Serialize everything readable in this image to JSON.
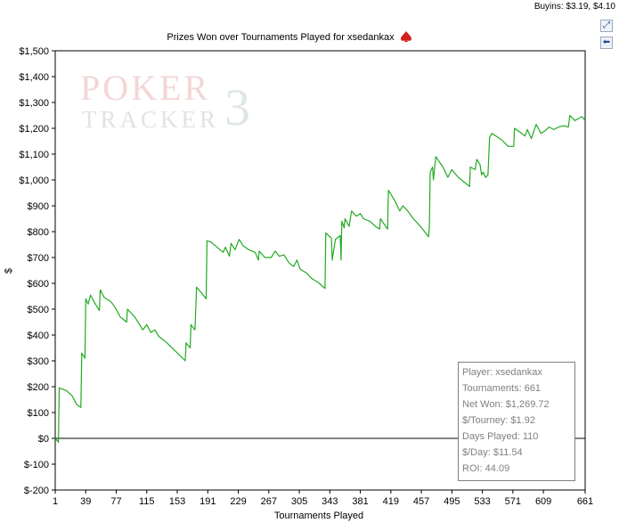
{
  "header": {
    "buyins": "Buyins: $3.19, $4.10"
  },
  "toolbar": {
    "expand_icon": "expand-icon",
    "back_icon": "back-arrow-icon"
  },
  "stats": {
    "player": "Player: xsedankax",
    "tournaments": "Tournaments: 661",
    "net_won": "Net Won: $1,269.72",
    "per_tourney": "$/Tourney: $1.92",
    "days_played": "Days Played: 110",
    "per_day": "$/Day: $11.54",
    "roi": "ROI: 44.09"
  },
  "watermark": {
    "line1": "POKER",
    "line2": "TRACKER",
    "mark": "3"
  },
  "chart_data": {
    "type": "line",
    "title": "Prizes Won over Tournaments Played for xsedankax",
    "xlabel": "Tournaments Played",
    "ylabel": "$",
    "xlim": [
      1,
      661
    ],
    "ylim": [
      -200,
      1500
    ],
    "x_ticks": [
      1,
      39,
      77,
      115,
      153,
      191,
      229,
      267,
      305,
      343,
      381,
      419,
      457,
      495,
      533,
      571,
      609,
      661
    ],
    "y_ticks": [
      -200,
      -100,
      0,
      100,
      200,
      300,
      400,
      500,
      600,
      700,
      800,
      900,
      1000,
      1100,
      1200,
      1300,
      1400,
      1500
    ],
    "y_tick_labels": [
      "$-200",
      "$-100",
      "$0",
      "$100",
      "$200",
      "$300",
      "$400",
      "$500",
      "$600",
      "$700",
      "$800",
      "$900",
      "$1,000",
      "$1,100",
      "$1,200",
      "$1,300",
      "$1,400",
      "$1,500"
    ],
    "series": [
      {
        "color": "#22aa22",
        "points": [
          [
            1,
            0
          ],
          [
            5,
            -15
          ],
          [
            6,
            195
          ],
          [
            15,
            185
          ],
          [
            22,
            165
          ],
          [
            28,
            130
          ],
          [
            33,
            120
          ],
          [
            34,
            330
          ],
          [
            38,
            310
          ],
          [
            39,
            540
          ],
          [
            42,
            520
          ],
          [
            45,
            555
          ],
          [
            50,
            525
          ],
          [
            56,
            495
          ],
          [
            57,
            575
          ],
          [
            62,
            545
          ],
          [
            70,
            530
          ],
          [
            75,
            510
          ],
          [
            82,
            470
          ],
          [
            90,
            450
          ],
          [
            91,
            500
          ],
          [
            100,
            470
          ],
          [
            110,
            420
          ],
          [
            115,
            440
          ],
          [
            120,
            410
          ],
          [
            125,
            420
          ],
          [
            130,
            395
          ],
          [
            140,
            370
          ],
          [
            150,
            340
          ],
          [
            163,
            300
          ],
          [
            164,
            370
          ],
          [
            169,
            350
          ],
          [
            170,
            440
          ],
          [
            175,
            420
          ],
          [
            177,
            585
          ],
          [
            184,
            560
          ],
          [
            189,
            540
          ],
          [
            190,
            765
          ],
          [
            195,
            760
          ],
          [
            210,
            720
          ],
          [
            213,
            740
          ],
          [
            218,
            705
          ],
          [
            220,
            755
          ],
          [
            225,
            730
          ],
          [
            230,
            770
          ],
          [
            235,
            745
          ],
          [
            242,
            730
          ],
          [
            250,
            720
          ],
          [
            254,
            690
          ],
          [
            255,
            725
          ],
          [
            262,
            700
          ],
          [
            270,
            700
          ],
          [
            275,
            725
          ],
          [
            280,
            705
          ],
          [
            286,
            710
          ],
          [
            292,
            680
          ],
          [
            298,
            665
          ],
          [
            302,
            690
          ],
          [
            306,
            655
          ],
          [
            314,
            640
          ],
          [
            320,
            620
          ],
          [
            330,
            600
          ],
          [
            337,
            580
          ],
          [
            338,
            795
          ],
          [
            345,
            775
          ],
          [
            346,
            690
          ],
          [
            350,
            770
          ],
          [
            356,
            785
          ],
          [
            357,
            690
          ],
          [
            358,
            840
          ],
          [
            361,
            815
          ],
          [
            362,
            850
          ],
          [
            367,
            820
          ],
          [
            370,
            880
          ],
          [
            376,
            860
          ],
          [
            381,
            870
          ],
          [
            385,
            850
          ],
          [
            393,
            840
          ],
          [
            400,
            820
          ],
          [
            405,
            810
          ],
          [
            406,
            850
          ],
          [
            415,
            810
          ],
          [
            416,
            960
          ],
          [
            424,
            920
          ],
          [
            430,
            880
          ],
          [
            434,
            900
          ],
          [
            440,
            880
          ],
          [
            447,
            850
          ],
          [
            456,
            820
          ],
          [
            466,
            780
          ],
          [
            467,
            820
          ],
          [
            468,
            1030
          ],
          [
            471,
            1050
          ],
          [
            472,
            1000
          ],
          [
            475,
            1090
          ],
          [
            484,
            1050
          ],
          [
            490,
            1010
          ],
          [
            495,
            1040
          ],
          [
            503,
            1010
          ],
          [
            511,
            990
          ],
          [
            517,
            975
          ],
          [
            518,
            1050
          ],
          [
            524,
            1040
          ],
          [
            526,
            1080
          ],
          [
            530,
            1060
          ],
          [
            532,
            1020
          ],
          [
            534,
            1030
          ],
          [
            537,
            1010
          ],
          [
            540,
            1020
          ],
          [
            542,
            1165
          ],
          [
            545,
            1180
          ],
          [
            550,
            1170
          ],
          [
            557,
            1155
          ],
          [
            565,
            1130
          ],
          [
            572,
            1130
          ],
          [
            573,
            1200
          ],
          [
            582,
            1180
          ],
          [
            586,
            1170
          ],
          [
            589,
            1195
          ],
          [
            594,
            1160
          ],
          [
            600,
            1215
          ],
          [
            606,
            1180
          ],
          [
            611,
            1190
          ],
          [
            616,
            1205
          ],
          [
            622,
            1195
          ],
          [
            628,
            1205
          ],
          [
            634,
            1210
          ],
          [
            640,
            1205
          ],
          [
            642,
            1250
          ],
          [
            648,
            1230
          ],
          [
            654,
            1240
          ],
          [
            657,
            1245
          ],
          [
            661,
            1230
          ]
        ]
      }
    ],
    "baseline": 0,
    "grid": false
  }
}
